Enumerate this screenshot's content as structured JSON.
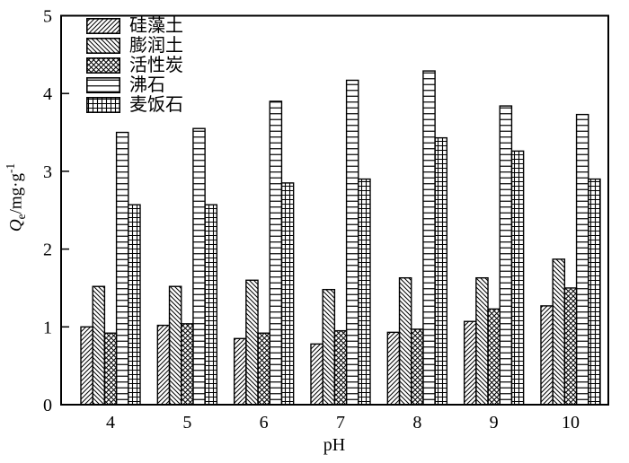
{
  "chart_data": {
    "type": "bar",
    "title": "",
    "xlabel": "pH",
    "ylabel": "Qe/mg·g-1",
    "ylabel_parts": {
      "symbol": "Q",
      "subscript": "e",
      "unit": "/mg·g",
      "exponent": "-1"
    },
    "categories": [
      "4",
      "5",
      "6",
      "7",
      "8",
      "9",
      "10"
    ],
    "yticks": [
      0,
      1,
      2,
      3,
      4,
      5
    ],
    "ylim": [
      0,
      5
    ],
    "grid": false,
    "legend_position": "upper-left",
    "bar_edge_color": "#000000",
    "bar_fill_color": "#ffffff",
    "series": [
      {
        "key": "diatomite",
        "name": "硅藻土",
        "pattern": "diagonal-forward-hatch",
        "values": [
          1.0,
          1.02,
          0.85,
          0.78,
          0.93,
          1.07,
          1.27
        ]
      },
      {
        "key": "bentonite",
        "name": "膨润土",
        "pattern": "diagonal-back-hatch",
        "values": [
          1.52,
          1.52,
          1.6,
          1.48,
          1.63,
          1.63,
          1.87
        ]
      },
      {
        "key": "activated-carbon",
        "name": "活性炭",
        "pattern": "cross-hatch",
        "values": [
          0.92,
          1.04,
          0.92,
          0.95,
          0.97,
          1.23,
          1.5
        ]
      },
      {
        "key": "zeolite",
        "name": "沸石",
        "pattern": "horizontal-lines",
        "values": [
          3.5,
          3.55,
          3.9,
          4.17,
          4.29,
          3.84,
          3.73
        ]
      },
      {
        "key": "maifan-stone",
        "name": "麦饭石",
        "pattern": "square-grid",
        "values": [
          2.57,
          2.57,
          2.85,
          2.9,
          3.43,
          3.26,
          2.9
        ]
      }
    ]
  }
}
